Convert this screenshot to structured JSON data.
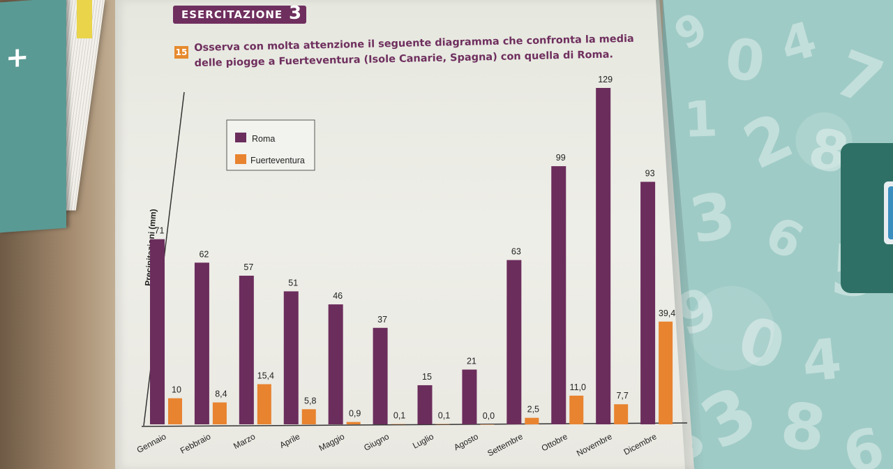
{
  "header": {
    "label": "ESERCITAZIONE",
    "number": "3"
  },
  "exercise": {
    "number": "15",
    "text": "Osserva con molta attenzione il seguente diagramma che confronta la media delle piogge a Fuerteventura (Isole Canarie, Spagna) con quella di Roma."
  },
  "colors": {
    "roma": "#6b2d5c",
    "fuerteventura": "#e8832f",
    "header": "#6f2f5e"
  },
  "chart_data": {
    "type": "bar",
    "title": "",
    "xlabel": "",
    "ylabel": "Precipitazioni (mm)",
    "ylim": [
      0,
      129
    ],
    "grid": false,
    "legend_placement": "top-left",
    "categories": [
      "Gennaio",
      "Febbraio",
      "Marzo",
      "Aprile",
      "Maggio",
      "Giugno",
      "Luglio",
      "Agosto",
      "Settembre",
      "Ottobre",
      "Novembre",
      "Dicembre"
    ],
    "series": [
      {
        "name": "Roma",
        "values": [
          71,
          62,
          57,
          51,
          46,
          37,
          15,
          21,
          63,
          99,
          129,
          93
        ],
        "labels": [
          "71",
          "62",
          "57",
          "51",
          "46",
          "37",
          "15",
          "21",
          "63",
          "99",
          "129",
          "93"
        ]
      },
      {
        "name": "Fuerteventura",
        "values": [
          10,
          8.4,
          15.4,
          5.8,
          0.9,
          0.1,
          0.1,
          0.0,
          2.5,
          11.0,
          7.7,
          39.4
        ],
        "labels": [
          "10",
          "8,4",
          "15,4",
          "5,8",
          "0,9",
          "0,1",
          "0,1",
          "0,0",
          "2,5",
          "11,0",
          "7,7",
          "39,4"
        ]
      }
    ]
  },
  "background_numbers": [
    "9",
    "0",
    "4",
    "7",
    "1",
    "2",
    "8",
    "3",
    "6",
    "5",
    "9",
    "0",
    "4",
    "3",
    "8",
    "6",
    "2",
    "5"
  ]
}
